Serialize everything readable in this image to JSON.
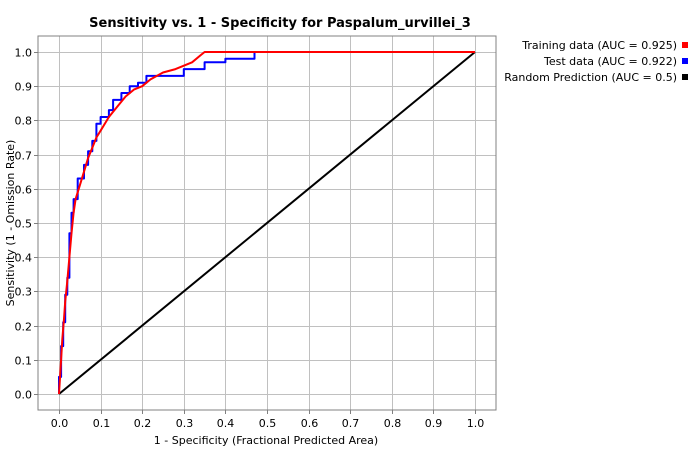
{
  "chart_data": {
    "type": "line",
    "title": "Sensitivity vs. 1 - Specificity for Paspalum_urvillei_3",
    "xlabel": "1 - Specificity  (Fractional Predicted Area)",
    "ylabel": "Sensitivity  (1 - Omission Rate)",
    "xlim": [
      0,
      1
    ],
    "ylim": [
      0,
      1
    ],
    "xticks": [
      "0.0",
      "0.1",
      "0.2",
      "0.3",
      "0.4",
      "0.5",
      "0.6",
      "0.7",
      "0.8",
      "0.9",
      "1.0"
    ],
    "yticks": [
      "0.0",
      "0.1",
      "0.2",
      "0.3",
      "0.4",
      "0.5",
      "0.6",
      "0.7",
      "0.8",
      "0.9",
      "1.0"
    ],
    "grid": true,
    "legend_position": "right-outside-top",
    "series": [
      {
        "name": "Training data (AUC = 0.925)",
        "color": "#ff0000",
        "x": [
          0,
          0.005,
          0.008,
          0.012,
          0.015,
          0.02,
          0.025,
          0.03,
          0.035,
          0.04,
          0.05,
          0.06,
          0.07,
          0.08,
          0.09,
          0.1,
          0.12,
          0.14,
          0.16,
          0.18,
          0.2,
          0.22,
          0.25,
          0.28,
          0.3,
          0.32,
          0.34,
          0.35,
          0.4,
          0.5,
          0.6,
          0.7,
          0.8,
          0.9,
          1.0
        ],
        "y": [
          0,
          0.1,
          0.16,
          0.22,
          0.27,
          0.33,
          0.4,
          0.47,
          0.53,
          0.57,
          0.61,
          0.65,
          0.69,
          0.72,
          0.75,
          0.77,
          0.81,
          0.84,
          0.87,
          0.89,
          0.9,
          0.92,
          0.94,
          0.95,
          0.96,
          0.97,
          0.99,
          1.0,
          1.0,
          1.0,
          1.0,
          1.0,
          1.0,
          1.0,
          1.0
        ]
      },
      {
        "name": "Test data (AUC = 0.922)",
        "color": "#0000ff",
        "x": [
          0,
          0,
          0.005,
          0.005,
          0.01,
          0.01,
          0.015,
          0.015,
          0.02,
          0.02,
          0.025,
          0.025,
          0.03,
          0.03,
          0.035,
          0.035,
          0.045,
          0.045,
          0.06,
          0.06,
          0.07,
          0.07,
          0.08,
          0.08,
          0.09,
          0.09,
          0.1,
          0.1,
          0.12,
          0.12,
          0.13,
          0.13,
          0.15,
          0.15,
          0.17,
          0.17,
          0.19,
          0.19,
          0.21,
          0.21,
          0.3,
          0.3,
          0.35,
          0.35,
          0.4,
          0.4,
          0.47,
          0.47,
          1.0
        ],
        "y": [
          0,
          0.05,
          0.05,
          0.14,
          0.14,
          0.21,
          0.21,
          0.29,
          0.29,
          0.34,
          0.34,
          0.47,
          0.47,
          0.53,
          0.53,
          0.57,
          0.57,
          0.63,
          0.63,
          0.67,
          0.67,
          0.71,
          0.71,
          0.74,
          0.74,
          0.79,
          0.79,
          0.81,
          0.81,
          0.83,
          0.83,
          0.86,
          0.86,
          0.88,
          0.88,
          0.9,
          0.9,
          0.91,
          0.91,
          0.93,
          0.93,
          0.95,
          0.95,
          0.97,
          0.97,
          0.98,
          0.98,
          1.0,
          1.0
        ]
      },
      {
        "name": "Random Prediction (AUC = 0.5)",
        "color": "#000000",
        "x": [
          0,
          1
        ],
        "y": [
          0,
          1
        ]
      }
    ]
  }
}
